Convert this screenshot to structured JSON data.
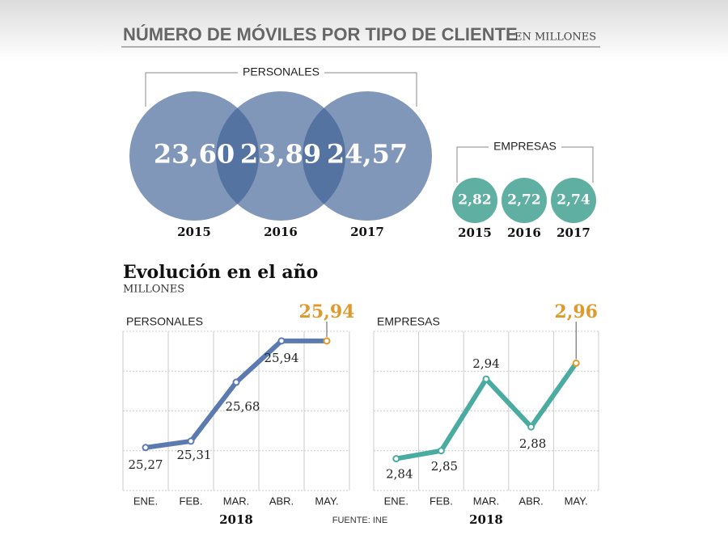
{
  "header": {
    "title": "NÚMERO DE MÓVILES POR TIPO DE CLIENTE",
    "subtitle": "EN MILLONES"
  },
  "section": {
    "title": "Evolución en el año",
    "subtitle": "MILLONES"
  },
  "source": "FUENTE: INE",
  "chart_data": [
    {
      "type": "circles",
      "title": "PERSONALES",
      "categories": [
        "2015",
        "2016",
        "2017"
      ],
      "values": [
        23.6,
        23.89,
        24.57
      ],
      "value_labels": [
        "23,60",
        "23,89",
        "24,57"
      ],
      "color": "#3c5f93"
    },
    {
      "type": "circles",
      "title": "EMPRESAS",
      "categories": [
        "2015",
        "2016",
        "2017"
      ],
      "values": [
        2.82,
        2.72,
        2.74
      ],
      "value_labels": [
        "2,82",
        "2,72",
        "2,74"
      ],
      "color": "#5fafa3"
    },
    {
      "type": "line",
      "title": "PERSONALES",
      "categories": [
        "ENE.",
        "FEB.",
        "MAR.",
        "ABR.",
        "MAY."
      ],
      "x_label": "2018",
      "values": [
        25.27,
        25.31,
        25.68,
        25.94,
        25.94
      ],
      "value_labels": [
        "25,27",
        "25,31",
        "25,68",
        "25,94",
        "25,94"
      ],
      "color": "#5b7bb0",
      "highlight_color": "#e09a2b",
      "ylim": [
        25.0,
        26.0
      ],
      "yticks": [
        25.0,
        25.25,
        25.5,
        25.75,
        26.0
      ],
      "grid": true
    },
    {
      "type": "line",
      "title": "EMPRESAS",
      "categories": [
        "ENE.",
        "FEB.",
        "MAR.",
        "ABR.",
        "MAY."
      ],
      "x_label": "2018",
      "values": [
        2.84,
        2.85,
        2.94,
        2.88,
        2.96
      ],
      "value_labels": [
        "2,84",
        "2,85",
        "2,94",
        "2,88",
        "2,96"
      ],
      "color": "#4aaba0",
      "highlight_color": "#e09a2b",
      "ylim": [
        2.8,
        3.0
      ],
      "yticks": [
        2.8,
        2.85,
        2.9,
        2.95,
        3.0
      ],
      "grid": true
    }
  ]
}
